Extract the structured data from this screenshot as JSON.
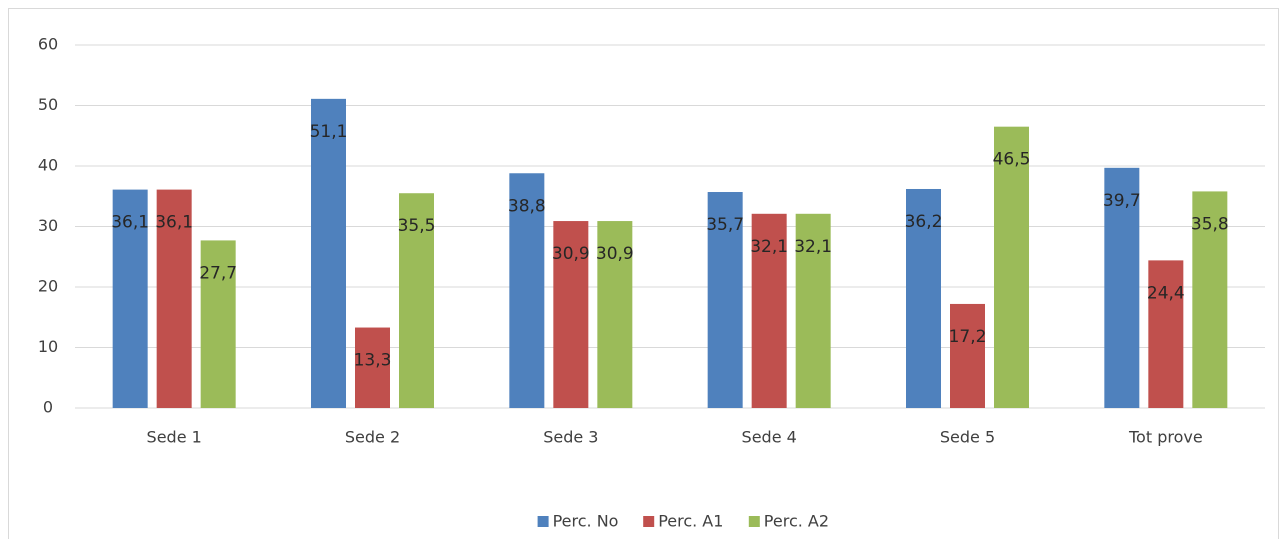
{
  "chart_data": {
    "type": "bar",
    "categories": [
      "Sede 1",
      "Sede 2",
      "Sede 3",
      "Sede 4",
      "Sede 5",
      "Tot prove"
    ],
    "series": [
      {
        "name": "Perc. No",
        "color": "#4f81bd",
        "values": [
          36.1,
          51.1,
          38.8,
          35.7,
          36.2,
          39.7
        ],
        "value_labels": [
          "36,1",
          "51,1",
          "38,8",
          "35,7",
          "36,2",
          "39,7"
        ]
      },
      {
        "name": "Perc. A1",
        "color": "#c0504d",
        "values": [
          36.1,
          13.3,
          30.9,
          32.1,
          17.2,
          24.4
        ],
        "value_labels": [
          "36,1",
          "13,3",
          "30,9",
          "32,1",
          "17,2",
          "24,4"
        ]
      },
      {
        "name": "Perc. A2",
        "color": "#9bbb59",
        "values": [
          27.7,
          35.5,
          30.9,
          32.1,
          46.5,
          35.8
        ],
        "value_labels": [
          "27,7",
          "35,5",
          "30,9",
          "32,1",
          "46,5",
          "35,8"
        ]
      }
    ],
    "ylim": [
      0,
      60
    ],
    "yticks": [
      0,
      10,
      20,
      30,
      40,
      50,
      60
    ],
    "grid": true,
    "legend": "bottom"
  }
}
